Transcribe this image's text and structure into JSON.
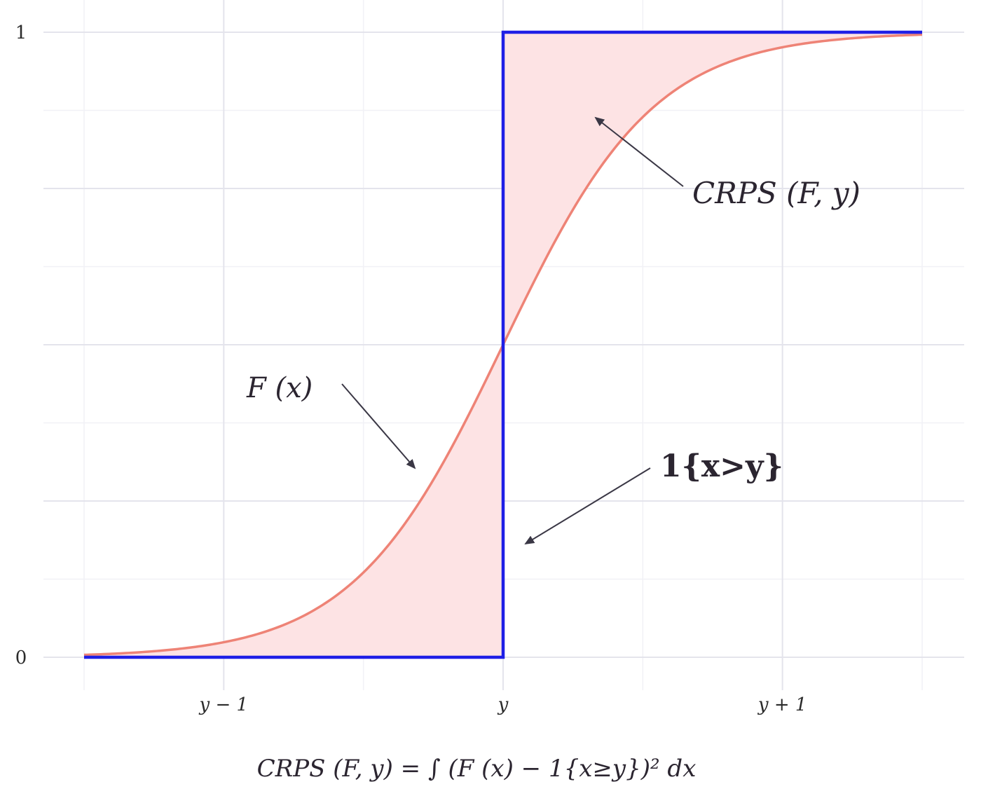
{
  "chart_data": {
    "type": "line",
    "title": "",
    "xlabel": "CRPS (F, y) = ∫ (F (x) − 1{x≥y})² dx",
    "ylabel": "",
    "xlim": [
      -1.5,
      1.5
    ],
    "ylim": [
      0,
      1
    ],
    "x_ticks": [
      {
        "value": -1,
        "label": "y − 1"
      },
      {
        "value": 0,
        "label": "y"
      },
      {
        "value": 1,
        "label": "y + 1"
      }
    ],
    "y_ticks": [
      {
        "value": 0,
        "label": "0"
      },
      {
        "value": 1,
        "label": "1"
      }
    ],
    "grid": true,
    "series": [
      {
        "name": "F (x)",
        "color": "#ee8376",
        "x": [
          -1.5,
          -1.25,
          -1.0,
          -0.75,
          -0.5,
          -0.25,
          0.0,
          0.25,
          0.5,
          0.75,
          1.0,
          1.25,
          1.5
        ],
        "y": [
          0.002,
          0.007,
          0.025,
          0.07,
          0.17,
          0.32,
          0.5,
          0.68,
          0.83,
          0.93,
          0.975,
          0.993,
          0.998
        ]
      },
      {
        "name": "1{x>y}",
        "color": "#1f1fe6",
        "x": [
          -1.5,
          0.0,
          0.0,
          1.5
        ],
        "y": [
          0,
          0,
          1,
          1
        ]
      }
    ],
    "shaded_area": {
      "name": "CRPS (F, y)",
      "color": "#fde3e4"
    },
    "annotations": [
      {
        "text": "F (x)"
      },
      {
        "text": "1{x>y}"
      },
      {
        "text": "CRPS (F, y)"
      }
    ]
  }
}
